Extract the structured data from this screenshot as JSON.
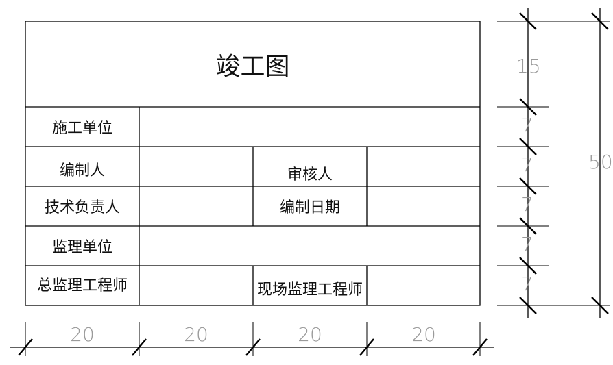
{
  "title_block": {
    "title": "竣工图",
    "rows": [
      {
        "label": "施工单位"
      },
      {
        "label": "编制人",
        "label2": "审核人"
      },
      {
        "label": "技术负责人",
        "label2": "编制日期"
      },
      {
        "label": "监理单位"
      },
      {
        "label": "总监理工程师",
        "label2": "现场监理工程师"
      }
    ]
  },
  "dimensions": {
    "horizontal": [
      "20",
      "20",
      "20",
      "20"
    ],
    "vertical": [
      "15",
      "7",
      "7",
      "7",
      "7",
      "7"
    ],
    "total_height": "50"
  },
  "colors": {
    "line": "#000000",
    "dimension_text": "#9a9a9a"
  }
}
